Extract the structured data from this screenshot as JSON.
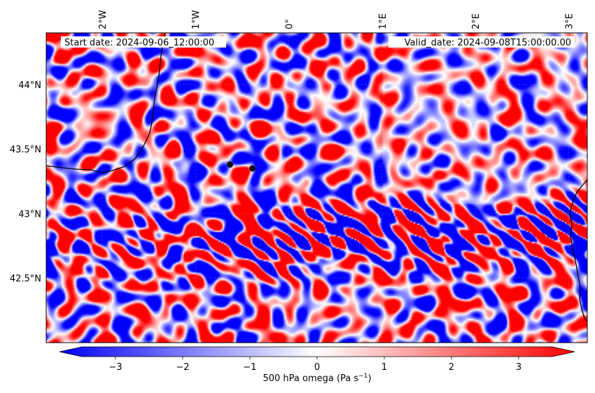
{
  "map": {
    "start_label": "Start date: 2024-09-06_12:00:00",
    "valid_label": "Valid_date: 2024-09-08T15:00:00.00",
    "lon_ticks": [
      {
        "label": "2°W",
        "lon": -2
      },
      {
        "label": "1°W",
        "lon": -1
      },
      {
        "label": "0°",
        "lon": 0
      },
      {
        "label": "1°E",
        "lon": 1
      },
      {
        "label": "2°E",
        "lon": 2
      },
      {
        "label": "3°E",
        "lon": 3
      }
    ],
    "lat_ticks": [
      {
        "label": "44°N",
        "lat": 44.0
      },
      {
        "label": "43.5°N",
        "lat": 43.5
      },
      {
        "label": "43°N",
        "lat": 43.0
      },
      {
        "label": "42.5°N",
        "lat": 42.5
      }
    ],
    "extent": {
      "lon_min": -2.6,
      "lon_max": 3.2,
      "lat_min": 42.0,
      "lat_max": 44.4
    },
    "markers": [
      {
        "lon": -0.63,
        "lat": 43.38
      },
      {
        "lon": -0.39,
        "lat": 43.35
      }
    ],
    "colors": {
      "negative": "#0000ff",
      "zero": "#ffffff",
      "positive": "#ff0000",
      "coast": "#000000",
      "marker": "#111111"
    }
  },
  "colorbar": {
    "label": "500 hPa omega (Pa s",
    "label_sup": "−1",
    "label_close": ")",
    "min": -3.5,
    "max": 3.5,
    "ticks": [
      "−3",
      "−2",
      "−1",
      "0",
      "1",
      "2",
      "3"
    ],
    "tick_values": [
      -3,
      -2,
      -1,
      0,
      1,
      2,
      3
    ]
  }
}
